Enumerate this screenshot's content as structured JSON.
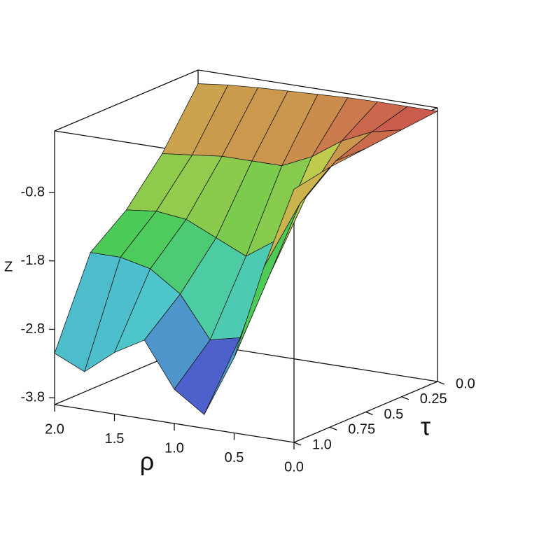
{
  "chart_data": {
    "type": "surface",
    "z_label": "Z",
    "rho_label": "ρ",
    "tau_label": "τ",
    "rho": [
      0,
      0.25,
      0.5,
      0.75,
      1.0,
      1.25,
      1.5,
      1.75,
      2.0
    ],
    "tau": [
      0,
      0.25,
      0.5,
      0.75,
      1.0
    ],
    "z": [
      [
        0.05,
        0.05,
        0.05,
        0.04,
        0.02,
        0.0,
        -0.02,
        -0.05,
        -0.1
      ],
      [
        0.0,
        -0.1,
        -0.3,
        -0.6,
        -0.8,
        -0.8,
        -0.8,
        -0.85,
        -0.9
      ],
      [
        -0.05,
        -0.3,
        -0.9,
        -1.6,
        -1.9,
        -1.7,
        -1.5,
        -1.45,
        -1.5
      ],
      [
        -0.1,
        -0.7,
        -1.8,
        -2.8,
        -2.9,
        -2.3,
        -2.0,
        -1.9,
        -1.9
      ],
      [
        -0.2,
        -1.4,
        -2.8,
        -3.7,
        -3.4,
        -2.75,
        -3.0,
        -3.35,
        -3.15
      ]
    ],
    "rholim": [
      0,
      2
    ],
    "taulim": [
      0,
      1
    ],
    "zlim": [
      -3.9,
      0.1
    ],
    "zticks": [
      -0.8,
      -1.8,
      -2.8,
      -3.8
    ],
    "rhoticks": [
      {
        "value": 2,
        "label": "2.0"
      },
      1.5,
      {
        "value": 1,
        "label": "1.0"
      },
      0.5,
      {
        "value": 0,
        "label": "0.0"
      }
    ],
    "tauticks": [
      {
        "value": 0,
        "label": "0.0"
      },
      0.25,
      0.5,
      0.75,
      {
        "value": 1,
        "label": "1.0"
      }
    ]
  }
}
